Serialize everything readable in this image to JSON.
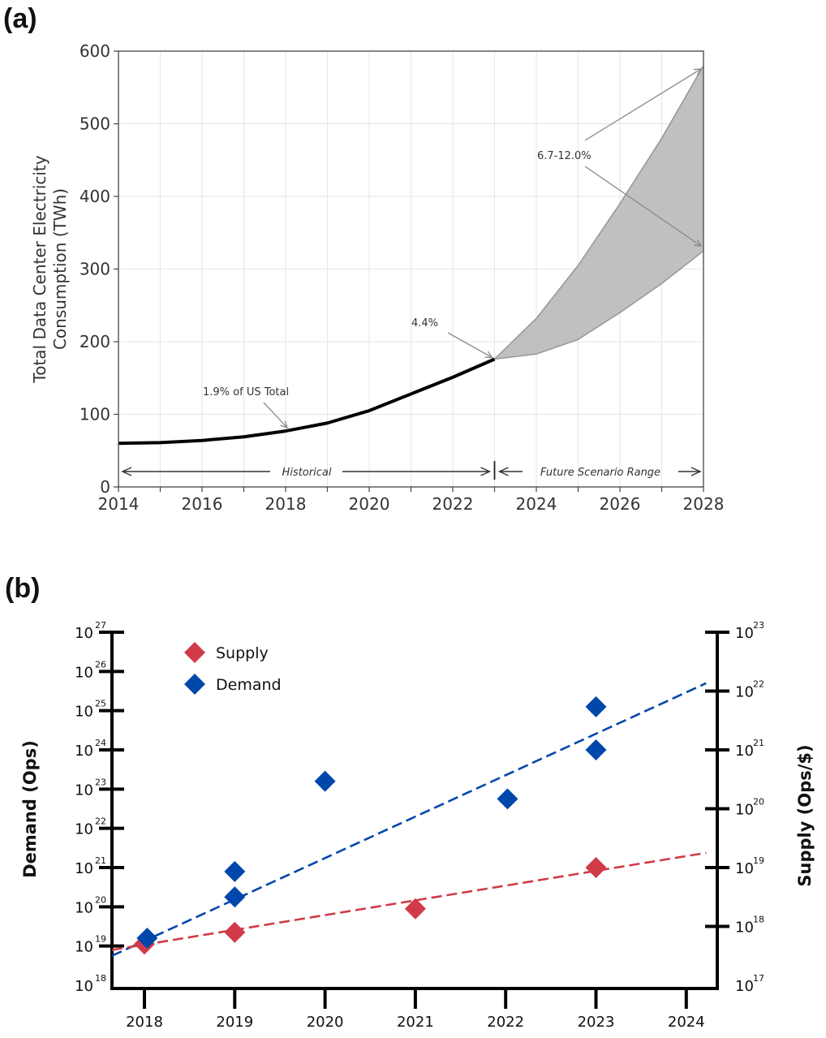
{
  "panels": {
    "a_label": "(a)",
    "b_label": "(b)"
  },
  "chart_data": [
    {
      "type": "line",
      "panel": "a",
      "title": "",
      "xlabel": "",
      "ylabel": [
        "Total Data Center Electricity",
        "Consumption (TWh)"
      ],
      "xlim": [
        2014,
        2028
      ],
      "ylim": [
        0,
        600
      ],
      "grid": true,
      "x_ticks": [
        2014,
        2016,
        2018,
        2020,
        2022,
        2024,
        2026,
        2028
      ],
      "x_minor_ticks": [
        2015,
        2017,
        2019,
        2021,
        2023,
        2025,
        2027
      ],
      "y_ticks": [
        0,
        100,
        200,
        300,
        400,
        500,
        600
      ],
      "series": [
        {
          "name": "Historical",
          "color": "#000000",
          "x": [
            2014,
            2015,
            2016,
            2017,
            2018,
            2019,
            2020,
            2021,
            2022,
            2023
          ],
          "values": [
            60,
            61,
            64,
            69,
            77,
            88,
            105,
            128,
            151,
            176
          ]
        },
        {
          "name": "Future upper bound",
          "color": "#999999",
          "x": [
            2023,
            2024,
            2025,
            2026,
            2027,
            2028
          ],
          "values": [
            176,
            232,
            305,
            390,
            480,
            580
          ]
        },
        {
          "name": "Future lower bound",
          "color": "#999999",
          "x": [
            2023,
            2024,
            2025,
            2026,
            2027,
            2028
          ],
          "values": [
            176,
            183,
            203,
            240,
            280,
            325
          ]
        }
      ],
      "fill_between": {
        "color": "#c0c0c0",
        "series": [
          "Future upper bound",
          "Future lower bound"
        ]
      },
      "annotations": [
        {
          "text": "1.9% of US Total",
          "points_to": [
            2018,
            77
          ]
        },
        {
          "text": "4.4%",
          "points_to": [
            2023,
            176
          ]
        },
        {
          "text": "6.7-12.0%",
          "points_to": [
            [
              2028,
              580
            ],
            [
              2028,
              325
            ]
          ]
        }
      ],
      "range_labels": [
        {
          "text": "Historical",
          "from": 2014,
          "to": 2023
        },
        {
          "text": "Future Scenario Range",
          "from": 2023,
          "to": 2028
        }
      ],
      "divider_year": 2023
    },
    {
      "type": "scatter",
      "panel": "b",
      "title": "",
      "xlabel": "",
      "ylabel_left": "Demand (Ops)",
      "ylabel_right": "Supply (Ops/$)",
      "x_ticks": [
        2018,
        2019,
        2020,
        2021,
        2022,
        2023,
        2024
      ],
      "y_left_scale": "log",
      "y_left_exponents": [
        18,
        19,
        20,
        21,
        22,
        23,
        24,
        25,
        26,
        27
      ],
      "y_right_scale": "log",
      "y_right_exponents": [
        17,
        18,
        19,
        20,
        21,
        22,
        23
      ],
      "legend": {
        "position": "top-left",
        "entries": [
          {
            "name": "Supply",
            "color": "#d13a48"
          },
          {
            "name": "Demand",
            "color": "#0047ab"
          }
        ]
      },
      "series": [
        {
          "name": "Demand",
          "axis": "left",
          "color": "#0047ab",
          "marker": "diamond",
          "points": [
            {
              "x": 2018.03,
              "log10": 19.2
            },
            {
              "x": 2019,
              "log10": 20.9
            },
            {
              "x": 2019,
              "log10": 20.25
            },
            {
              "x": 2020,
              "log10": 23.2
            },
            {
              "x": 2022.02,
              "log10": 22.75
            },
            {
              "x": 2023,
              "log10": 25.1
            },
            {
              "x": 2023,
              "log10": 24.0
            }
          ],
          "trend": {
            "x": [
              2017.64,
              2024.22
            ],
            "log10": [
              18.75,
              25.7
            ]
          }
        },
        {
          "name": "Supply",
          "axis": "right",
          "color": "#d13a48",
          "marker": "diamond",
          "points": [
            {
              "x": 2018,
              "log10": 17.7
            },
            {
              "x": 2019,
              "log10": 17.9
            },
            {
              "x": 2021,
              "log10": 18.3
            },
            {
              "x": 2023,
              "log10": 19.0
            }
          ],
          "trend": {
            "x": [
              2017.64,
              2024.22
            ],
            "log10": [
              17.6,
              19.25
            ]
          }
        }
      ]
    }
  ]
}
